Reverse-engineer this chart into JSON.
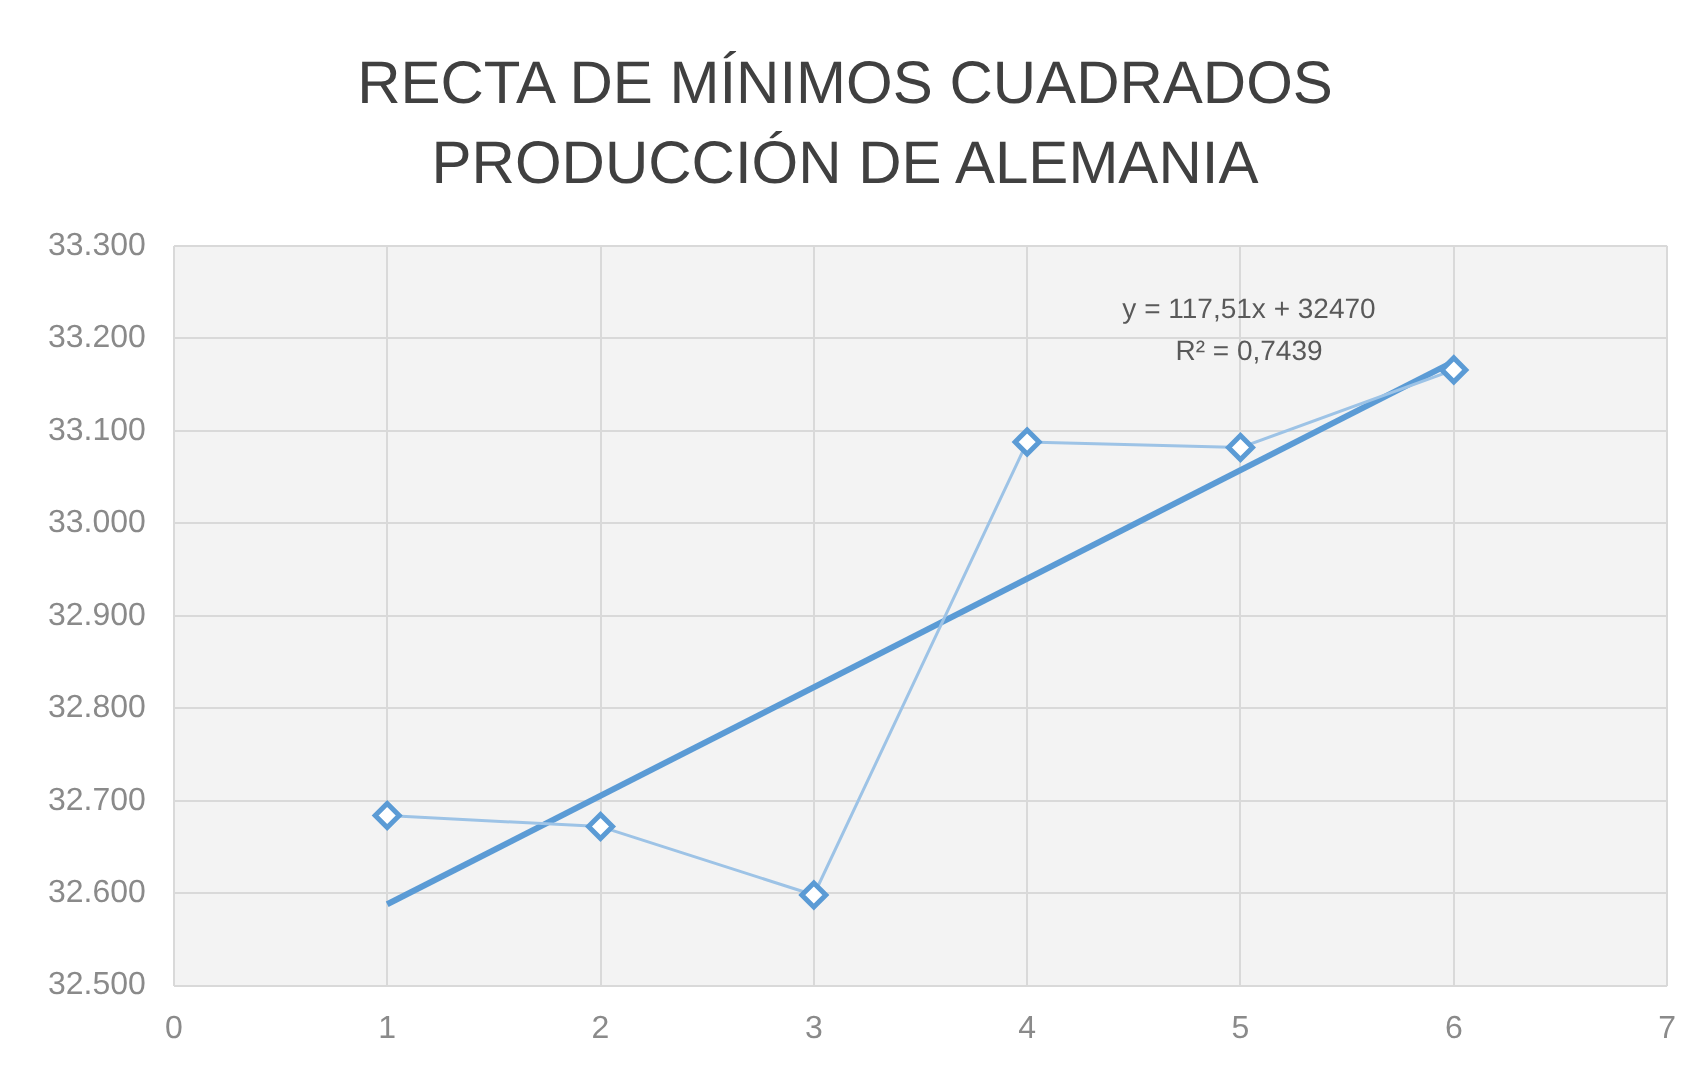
{
  "chart_data": {
    "type": "line",
    "title": "RECTA DE MÍNIMOS CUADRADOS",
    "subtitle": "PRODUCCIÓN DE ALEMANIA",
    "series": [
      {
        "color": "#9dc3e6",
        "x": [
          1,
          2,
          3,
          4,
          5,
          6
        ],
        "values": [
          32684,
          32672,
          32598,
          33088,
          33082,
          33166
        ],
        "marker": "diamond"
      },
      {
        "type": "line",
        "color": "#5b9bd5",
        "x": [
          1,
          6
        ],
        "values": [
          32588,
          33175
        ],
        "marker": "none"
      }
    ],
    "xlim": [
      0,
      7
    ],
    "xticks": [
      0,
      1,
      2,
      3,
      4,
      5,
      6,
      7
    ],
    "ylim": [
      32500,
      33300
    ],
    "yticks": [
      {
        "value": 32500,
        "label": "32.500"
      },
      {
        "value": 32600,
        "label": "32.600"
      },
      {
        "value": 32700,
        "label": "32.700"
      },
      {
        "value": 32800,
        "label": "32.800"
      },
      {
        "value": 32900,
        "label": "32.900"
      },
      {
        "value": 33000,
        "label": "33.000"
      },
      {
        "value": 33100,
        "label": "33.100"
      },
      {
        "value": 33200,
        "label": "33.200"
      },
      {
        "value": 33300,
        "label": "33.300"
      }
    ],
    "annotations": [
      "y = 117,51x + 32470",
      "R² = 0,7439"
    ],
    "grid": true,
    "legend": false
  }
}
